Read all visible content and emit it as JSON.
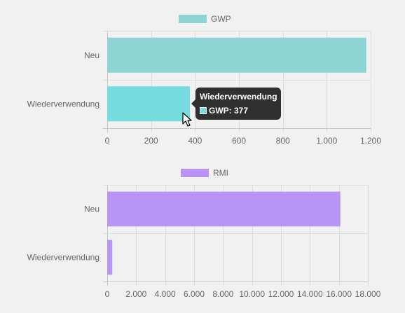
{
  "chart_data": [
    {
      "type": "bar",
      "orientation": "horizontal",
      "categories": [
        "Neu",
        "Wiederverwendung"
      ],
      "series": [
        {
          "name": "GWP",
          "values": [
            1180,
            377
          ],
          "color": "#8dd5d3"
        }
      ],
      "xlim": [
        0,
        1200
      ],
      "xticks": [
        0,
        200,
        400,
        600,
        800,
        1000,
        1200
      ],
      "xtick_labels": [
        "0",
        "200",
        "400",
        "600",
        "800",
        "1.000",
        "1.200"
      ],
      "grid": true,
      "legend_position": "top-center",
      "highlighted_category": "Wiederverwendung",
      "highlight_color": "#76dcdf"
    },
    {
      "type": "bar",
      "orientation": "horizontal",
      "categories": [
        "Neu",
        "Wiederverwendung"
      ],
      "series": [
        {
          "name": "RMI",
          "values": [
            16100,
            350
          ],
          "color": "#b794f6"
        }
      ],
      "xlim": [
        0,
        18000
      ],
      "xticks": [
        0,
        2000,
        4000,
        6000,
        8000,
        10000,
        12000,
        14000,
        16000,
        18000
      ],
      "xtick_labels": [
        "0",
        "2.000",
        "4.000",
        "6.000",
        "8.000",
        "10.000",
        "12.000",
        "14.000",
        "16.000",
        "18.000"
      ],
      "grid": true,
      "legend_position": "top-center"
    }
  ],
  "tooltip": {
    "title": "Wiederverwendung",
    "label": "GWP: 377",
    "swatch_color": "#76dcdf"
  }
}
